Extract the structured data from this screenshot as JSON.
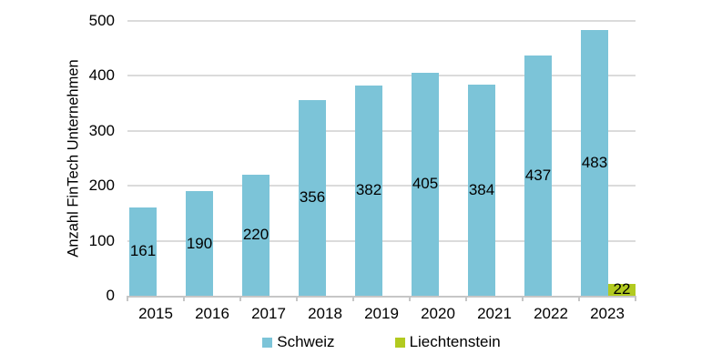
{
  "chart_data": {
    "type": "bar",
    "title": "",
    "xlabel": "",
    "ylabel": "Anzahl FinTech Unternehmen",
    "categories": [
      "2015",
      "2016",
      "2017",
      "2018",
      "2019",
      "2020",
      "2021",
      "2022",
      "2023"
    ],
    "series": [
      {
        "name": "Schweiz",
        "color": "#7cc4d8",
        "values": [
          161,
          190,
          220,
          356,
          382,
          405,
          384,
          437,
          483
        ]
      },
      {
        "name": "Liechtenstein",
        "color": "#b2ca20",
        "values": [
          null,
          null,
          null,
          null,
          null,
          null,
          null,
          null,
          22
        ]
      }
    ],
    "ylim": [
      0,
      500
    ],
    "yticks": [
      0,
      100,
      200,
      300,
      400,
      500
    ],
    "grid": true,
    "data_labels": true,
    "legend_position": "bottom"
  },
  "style_colors": {
    "gridline": "#dbdbdb",
    "axis": "#c6c6c6",
    "text": "#000000",
    "background": "#ffffff"
  }
}
